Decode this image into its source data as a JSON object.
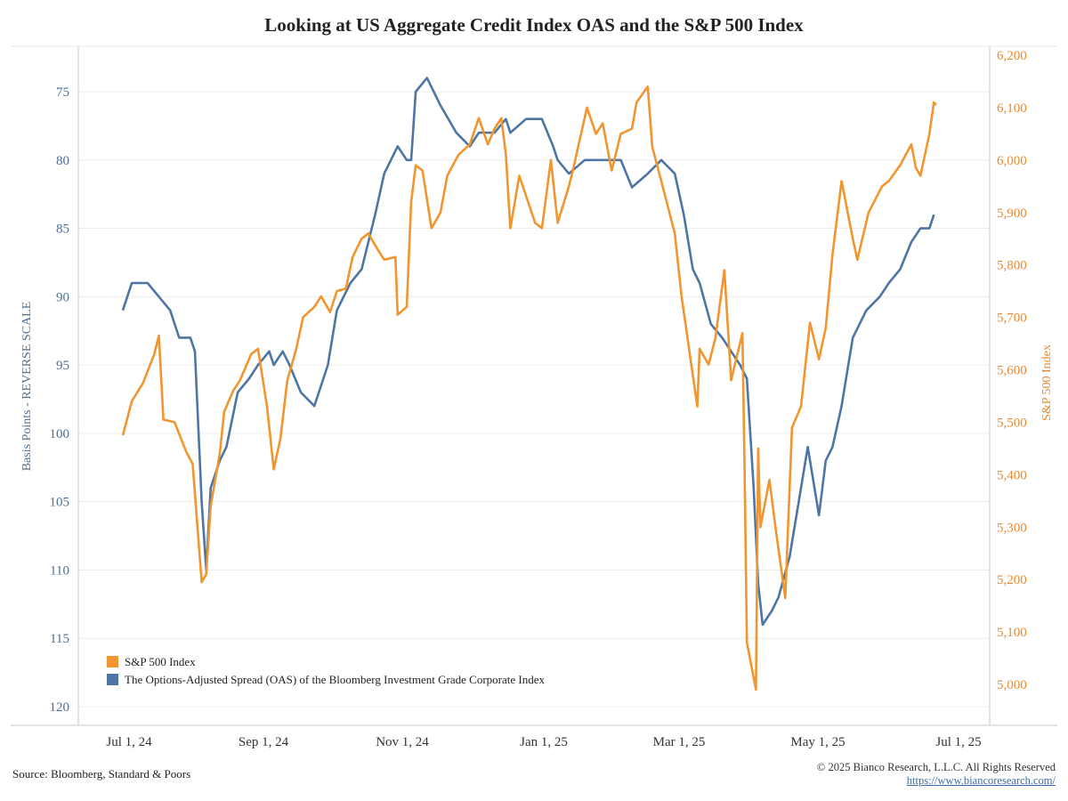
{
  "title": "Looking at US Aggregate Credit Index OAS and the S&P 500 Index",
  "source": "Source: Bloomberg, Standard & Poors",
  "copyright": "© 2025 Bianco Research, L.L.C. All Rights Reserved",
  "url": "https://www.biancoresearch.com/",
  "chart_data": {
    "type": "line",
    "title": "Looking at US Aggregate Credit Index OAS and the S&P 500 Index",
    "ylabel_left": "Basis Points - REVERSE SCALE",
    "ylabel_right": "S&P 500 Index",
    "x_ticks": [
      "Jul 1, 24",
      "Sep 1, 24",
      "Nov 1, 24",
      "Jan 1, 25",
      "Mar 1, 25",
      "May 1, 25",
      "Jul 1, 25"
    ],
    "x_range": [
      "2024-07-01",
      "2025-07-01"
    ],
    "y_left": {
      "ticks": [
        75,
        80,
        85,
        90,
        95,
        100,
        105,
        110,
        115,
        120
      ],
      "range": [
        73,
        121
      ],
      "reversed": true
    },
    "y_right": {
      "ticks": [
        "5,000",
        "5,100",
        "5,200",
        "5,300",
        "5,400",
        "5,500",
        "5,600",
        "5,700",
        "5,800",
        "5,900",
        "6,000",
        "6,100",
        "6,200"
      ],
      "range": [
        4920,
        6210
      ]
    },
    "legend": {
      "placement": "bottom-left",
      "entries": [
        "S&P 500 Index",
        "The Options-Adjusted Spread (OAS) of the Bloomberg Investment Grade Corporate Index"
      ]
    },
    "colors": {
      "sp500": "#f0952f",
      "oas": "#4e75a3"
    },
    "grid": "horizontal",
    "series": [
      {
        "name": "The Options-Adjusted Spread (OAS) of the Bloomberg Investment Grade Corporate Index",
        "axis": "left",
        "x": [
          "2024-07-01",
          "2024-07-05",
          "2024-07-12",
          "2024-07-17",
          "2024-07-22",
          "2024-07-26",
          "2024-07-31",
          "2024-08-02",
          "2024-08-05",
          "2024-08-07",
          "2024-08-09",
          "2024-08-13",
          "2024-08-16",
          "2024-08-21",
          "2024-08-26",
          "2024-08-30",
          "2024-09-04",
          "2024-09-06",
          "2024-09-10",
          "2024-09-13",
          "2024-09-18",
          "2024-09-24",
          "2024-09-30",
          "2024-10-04",
          "2024-10-10",
          "2024-10-15",
          "2024-10-21",
          "2024-10-25",
          "2024-10-31",
          "2024-11-04",
          "2024-11-06",
          "2024-11-08",
          "2024-11-13",
          "2024-11-19",
          "2024-11-26",
          "2024-12-02",
          "2024-12-06",
          "2024-12-10",
          "2024-12-13",
          "2024-12-18",
          "2024-12-20",
          "2024-12-27",
          "2025-01-03",
          "2025-01-08",
          "2025-01-10",
          "2025-01-15",
          "2025-01-22",
          "2025-01-28",
          "2025-02-03",
          "2025-02-07",
          "2025-02-12",
          "2025-02-19",
          "2025-02-25",
          "2025-03-03",
          "2025-03-07",
          "2025-03-11",
          "2025-03-14",
          "2025-03-19",
          "2025-03-24",
          "2025-03-28",
          "2025-04-01",
          "2025-04-04",
          "2025-04-07",
          "2025-04-09",
          "2025-04-11",
          "2025-04-15",
          "2025-04-18",
          "2025-04-23",
          "2025-04-28",
          "2025-05-01",
          "2025-05-06",
          "2025-05-09",
          "2025-05-12",
          "2025-05-16",
          "2025-05-21",
          "2025-05-27",
          "2025-06-02",
          "2025-06-06",
          "2025-06-11",
          "2025-06-16",
          "2025-06-20",
          "2025-06-24",
          "2025-06-26"
        ],
        "values": [
          91,
          89,
          89,
          90,
          91,
          93,
          93,
          94,
          105,
          110,
          104,
          102,
          101,
          97,
          96,
          95,
          94,
          95,
          94,
          95,
          97,
          98,
          95,
          91,
          89,
          88,
          84,
          81,
          79,
          80,
          80,
          75,
          74,
          76,
          78,
          79,
          78,
          78,
          78,
          77,
          78,
          77,
          77,
          79,
          80,
          81,
          80,
          80,
          80,
          80,
          82,
          81,
          80,
          81,
          84,
          88,
          89,
          92,
          93,
          94,
          95,
          96,
          104,
          111,
          114,
          113,
          112,
          109,
          104,
          101,
          106,
          102,
          101,
          98,
          93,
          91,
          90,
          89,
          88,
          86,
          85,
          85,
          84
        ]
      },
      {
        "name": "S&P 500 Index",
        "axis": "right",
        "x": [
          "2024-07-01",
          "2024-07-05",
          "2024-07-10",
          "2024-07-15",
          "2024-07-17",
          "2024-07-19",
          "2024-07-24",
          "2024-07-29",
          "2024-08-01",
          "2024-08-05",
          "2024-08-07",
          "2024-08-09",
          "2024-08-13",
          "2024-08-15",
          "2024-08-19",
          "2024-08-22",
          "2024-08-27",
          "2024-08-30",
          "2024-09-03",
          "2024-09-06",
          "2024-09-09",
          "2024-09-12",
          "2024-09-16",
          "2024-09-19",
          "2024-09-24",
          "2024-09-27",
          "2024-10-01",
          "2024-10-04",
          "2024-10-08",
          "2024-10-11",
          "2024-10-15",
          "2024-10-18",
          "2024-10-22",
          "2024-10-25",
          "2024-10-30",
          "2024-10-31",
          "2024-11-04",
          "2024-11-06",
          "2024-11-08",
          "2024-11-11",
          "2024-11-15",
          "2024-11-19",
          "2024-11-22",
          "2024-11-27",
          "2024-12-02",
          "2024-12-06",
          "2024-12-10",
          "2024-12-13",
          "2024-12-16",
          "2024-12-18",
          "2024-12-20",
          "2024-12-24",
          "2024-12-31",
          "2025-01-03",
          "2025-01-07",
          "2025-01-10",
          "2025-01-15",
          "2025-01-17",
          "2025-01-23",
          "2025-01-27",
          "2025-01-30",
          "2025-02-03",
          "2025-02-07",
          "2025-02-12",
          "2025-02-14",
          "2025-02-19",
          "2025-02-21",
          "2025-02-25",
          "2025-03-03",
          "2025-03-06",
          "2025-03-10",
          "2025-03-13",
          "2025-03-14",
          "2025-03-18",
          "2025-03-21",
          "2025-03-25",
          "2025-03-28",
          "2025-04-02",
          "2025-04-03",
          "2025-04-04",
          "2025-04-08",
          "2025-04-09",
          "2025-04-10",
          "2025-04-14",
          "2025-04-17",
          "2025-04-21",
          "2025-04-24",
          "2025-04-28",
          "2025-05-02",
          "2025-05-06",
          "2025-05-09",
          "2025-05-12",
          "2025-05-16",
          "2025-05-21",
          "2025-05-23",
          "2025-05-28",
          "2025-06-03",
          "2025-06-06",
          "2025-06-11",
          "2025-06-16",
          "2025-06-18",
          "2025-06-20",
          "2025-06-24",
          "2025-06-26",
          "2025-06-27"
        ],
        "values": [
          5475,
          5540,
          5575,
          5630,
          5665,
          5505,
          5500,
          5445,
          5420,
          5195,
          5210,
          5340,
          5440,
          5520,
          5560,
          5580,
          5630,
          5640,
          5530,
          5410,
          5470,
          5580,
          5640,
          5700,
          5720,
          5740,
          5710,
          5750,
          5755,
          5815,
          5850,
          5860,
          5830,
          5810,
          5815,
          5705,
          5720,
          5920,
          5990,
          5980,
          5870,
          5900,
          5970,
          6010,
          6030,
          6080,
          6030,
          6060,
          6080,
          6010,
          5870,
          5970,
          5880,
          5870,
          6000,
          5880,
          5950,
          5985,
          6100,
          6050,
          6070,
          5980,
          6050,
          6060,
          6110,
          6140,
          6025,
          5960,
          5860,
          5740,
          5620,
          5530,
          5640,
          5610,
          5660,
          5790,
          5580,
          5670,
          5400,
          5080,
          4990,
          5450,
          5300,
          5390,
          5290,
          5165,
          5490,
          5530,
          5690,
          5620,
          5680,
          5820,
          5960,
          5850,
          5810,
          5900,
          5950,
          5960,
          5990,
          6030,
          5985,
          5970,
          6050,
          6110,
          6105
        ]
      }
    ]
  }
}
